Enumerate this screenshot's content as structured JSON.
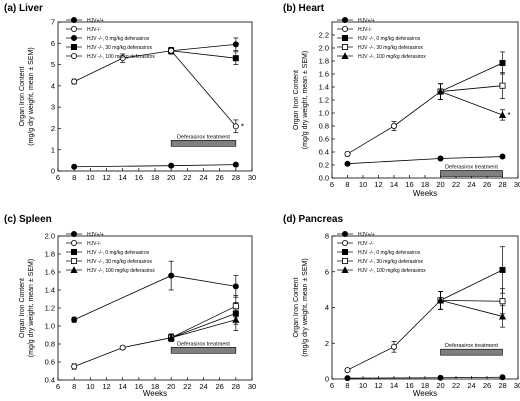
{
  "chart_data": [
    {
      "type": "line",
      "panel_label": "(a) Liver",
      "xlabel": "",
      "ylabel": [
        "Organ Iron Content",
        "(mg/g dry weight, mean ± SEM)"
      ],
      "xlim": [
        6,
        30
      ],
      "ylim": [
        0,
        7
      ],
      "xticks": [
        "6",
        "8",
        "10",
        "12",
        "14",
        "16",
        "18",
        "20",
        "22",
        "24",
        "26",
        "28",
        "30"
      ],
      "yticks": [
        "0",
        "1",
        "2",
        "3",
        "4",
        "5",
        "6",
        "7"
      ],
      "treatment_label": "Deferasirox treatment",
      "treatment_range": [
        20,
        28
      ],
      "treatment_level": 1.3,
      "series": [
        {
          "name": "HJV+/+",
          "marker": "circle-filled",
          "x": [
            8,
            20,
            28
          ],
          "values": [
            0.2,
            0.25,
            0.3
          ],
          "err": [
            0.03,
            0.03,
            0.03
          ]
        },
        {
          "name": "HJV-/-",
          "marker": "circle-open",
          "x": [
            8,
            14,
            20
          ],
          "values": [
            4.2,
            5.3,
            5.65
          ],
          "err": [
            0.12,
            0.2,
            0.15
          ]
        },
        {
          "name": "HJV -/-,   0 mg/kg deferasirox",
          "marker": "circle-filled",
          "x": [
            20,
            28
          ],
          "values": [
            5.65,
            5.95
          ],
          "err": [
            0.15,
            0.3
          ]
        },
        {
          "name": "HJV -/-,  30 mg/kg deferasirox",
          "marker": "square-filled",
          "x": [
            20,
            28
          ],
          "values": [
            5.65,
            5.3
          ],
          "err": [
            0.15,
            0.3
          ]
        },
        {
          "name": "HJV -/-, 100 mg/kg deferasirox",
          "marker": "circle-open",
          "x": [
            20,
            28
          ],
          "values": [
            5.65,
            2.1
          ],
          "err": [
            0.15,
            0.3
          ],
          "star": "*"
        }
      ]
    },
    {
      "type": "line",
      "panel_label": "(b) Heart",
      "xlabel": "Weeks",
      "ylabel": [
        "Organ Iron Content",
        "(mg/g dry weight, mean ± SEM)"
      ],
      "xlim": [
        6,
        30
      ],
      "ylim": [
        0,
        2.4
      ],
      "xticks": [
        "6",
        "8",
        "10",
        "12",
        "14",
        "16",
        "18",
        "20",
        "22",
        "24",
        "26",
        "28",
        "30"
      ],
      "yticks": [
        "0.0",
        "0.2",
        "0.4",
        "0.6",
        "0.8",
        "1.0",
        "1.2",
        "1.4",
        "1.6",
        "1.8",
        "2.0",
        "2.2"
      ],
      "treatment_label": "Deferasirox treatment",
      "treatment_range": [
        20,
        28
      ],
      "treatment_level": 0.07,
      "series": [
        {
          "name": "HJV+/+",
          "marker": "circle-filled",
          "x": [
            8,
            20,
            28
          ],
          "values": [
            0.22,
            0.3,
            0.33
          ],
          "err": [
            0.02,
            0.02,
            0.02
          ]
        },
        {
          "name": "HJV-/-",
          "marker": "circle-open",
          "x": [
            8,
            14,
            20
          ],
          "values": [
            0.37,
            0.8,
            1.33
          ],
          "err": [
            0.03,
            0.07,
            0.12
          ]
        },
        {
          "name": "HJV -/-,   0 mg/kg deferasirox",
          "marker": "square-filled",
          "x": [
            20,
            28
          ],
          "values": [
            1.33,
            1.77
          ],
          "err": [
            0.12,
            0.17
          ]
        },
        {
          "name": "HJV -/-,  30 mg/kg deferasirox",
          "marker": "square-open",
          "x": [
            20,
            28
          ],
          "values": [
            1.33,
            1.42
          ],
          "err": [
            0.12,
            0.2
          ]
        },
        {
          "name": "HJV -/-, 100 mg/kg deferasirox",
          "marker": "triangle-filled",
          "x": [
            20,
            28
          ],
          "values": [
            1.33,
            0.97
          ],
          "err": [
            0.12,
            0.08
          ],
          "star": "*"
        }
      ]
    },
    {
      "type": "line",
      "panel_label": "(c) Spleen",
      "xlabel": "Weeks",
      "ylabel": [
        "Organ Iron Content",
        "(mg/g dry weight, mean ± SEM)"
      ],
      "xlim": [
        6,
        30
      ],
      "ylim": [
        0.4,
        2.0
      ],
      "xticks": [
        "6",
        "8",
        "10",
        "12",
        "14",
        "16",
        "18",
        "20",
        "22",
        "24",
        "26",
        "28",
        "30"
      ],
      "yticks": [
        "0.4",
        "0.6",
        "0.8",
        "1.0",
        "1.2",
        "1.4",
        "1.6",
        "1.8",
        "2.0"
      ],
      "treatment_label": "Deferasirox treatment",
      "treatment_range": [
        20,
        28
      ],
      "treatment_level": 0.73,
      "series": [
        {
          "name": "HJV+/+",
          "marker": "circle-filled",
          "x": [
            8,
            20,
            28
          ],
          "values": [
            1.07,
            1.56,
            1.44
          ],
          "err": [
            0.03,
            0.16,
            0.12
          ]
        },
        {
          "name": "HJV-/-",
          "marker": "circle-open",
          "x": [
            8,
            14,
            20
          ],
          "values": [
            0.55,
            0.76,
            0.87
          ],
          "err": [
            0.03,
            0.02,
            0.04
          ]
        },
        {
          "name": "HJV -/-,   0 mg/kg deferasirox",
          "marker": "square-filled",
          "x": [
            20,
            28
          ],
          "values": [
            0.87,
            1.14
          ],
          "err": [
            0.04,
            0.12
          ]
        },
        {
          "name": "HJV -/-,  30 mg/kg deferasirox",
          "marker": "square-open",
          "x": [
            20,
            28
          ],
          "values": [
            0.87,
            1.22
          ],
          "err": [
            0.04,
            0.12
          ]
        },
        {
          "name": "HJV -/-, 100 mg/kg deferasirox",
          "marker": "triangle-filled",
          "x": [
            20,
            28
          ],
          "values": [
            0.87,
            1.07
          ],
          "err": [
            0.04,
            0.12
          ]
        }
      ]
    },
    {
      "type": "line",
      "panel_label": "(d) Pancreas",
      "xlabel": "Weeks",
      "ylabel": [
        "Organ Iron Content",
        "(mg/g dry weight, mean ± SEM)"
      ],
      "xlim": [
        6,
        30
      ],
      "ylim": [
        0,
        8
      ],
      "xticks": [
        "6",
        "8",
        "10",
        "12",
        "14",
        "16",
        "18",
        "20",
        "22",
        "24",
        "26",
        "28",
        "30"
      ],
      "yticks": [
        "0",
        "2",
        "4",
        "6",
        "8"
      ],
      "treatment_label": "Deferasirox treatment",
      "treatment_range": [
        20,
        28
      ],
      "treatment_level": 1.5,
      "series": [
        {
          "name": "HJV+/+",
          "marker": "circle-filled",
          "x": [
            8,
            20,
            28
          ],
          "values": [
            0.05,
            0.07,
            0.1
          ],
          "err": [
            0.02,
            0.02,
            0.02
          ]
        },
        {
          "name": "HJV -/-",
          "marker": "circle-open",
          "x": [
            8,
            14,
            20
          ],
          "values": [
            0.5,
            1.8,
            4.4
          ],
          "err": [
            0.1,
            0.3,
            0.5
          ]
        },
        {
          "name": "HJV -/-,   0 mg/kg deferasirox",
          "marker": "square-filled",
          "x": [
            20,
            28
          ],
          "values": [
            4.4,
            6.1
          ],
          "err": [
            0.5,
            1.3
          ]
        },
        {
          "name": "HJV -/-,  30 mg/kg deferasirox",
          "marker": "square-open",
          "x": [
            20,
            28
          ],
          "values": [
            4.4,
            4.35
          ],
          "err": [
            0.5,
            0.7
          ]
        },
        {
          "name": "HJV -/-, 100 mg/kg deferasirox",
          "marker": "triangle-filled",
          "x": [
            20,
            28
          ],
          "values": [
            4.4,
            3.5
          ],
          "err": [
            0.5,
            0.6
          ]
        }
      ]
    }
  ]
}
